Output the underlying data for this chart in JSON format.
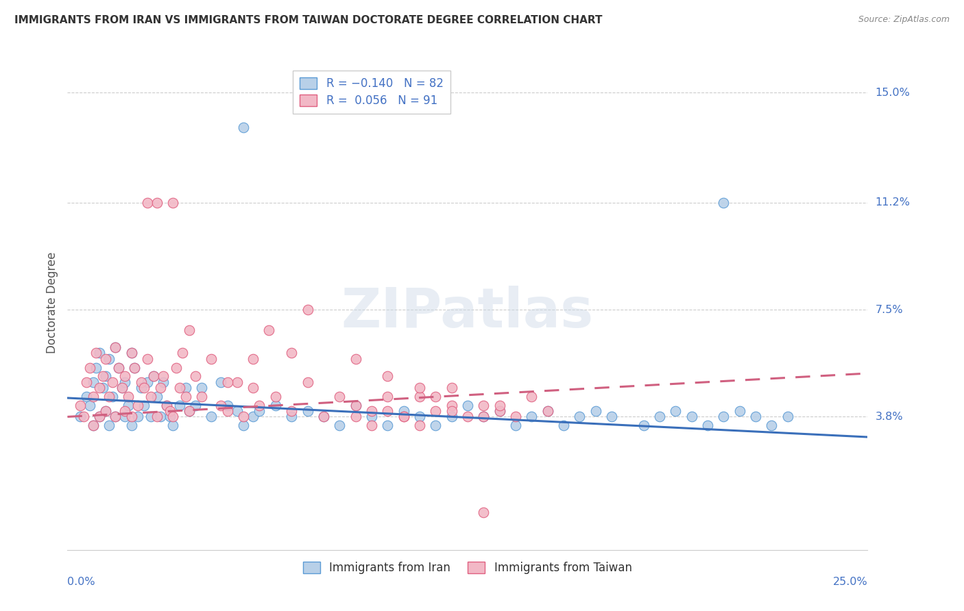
{
  "title": "IMMIGRANTS FROM IRAN VS IMMIGRANTS FROM TAIWAN DOCTORATE DEGREE CORRELATION CHART",
  "source": "Source: ZipAtlas.com",
  "ylabel": "Doctorate Degree",
  "xmin": 0.0,
  "xmax": 0.25,
  "ymin": -0.008,
  "ymax": 0.163,
  "iran_R": -0.14,
  "iran_N": 82,
  "taiwan_R": 0.056,
  "taiwan_N": 91,
  "color_iran_fill": "#b8d0e8",
  "color_iran_edge": "#5b9bd5",
  "color_taiwan_fill": "#f2b8c6",
  "color_taiwan_edge": "#e06080",
  "color_iran_line": "#3a6fba",
  "color_taiwan_line": "#d06080",
  "color_blue_text": "#4472c4",
  "iran_line_x0": 0.0,
  "iran_line_x1": 0.25,
  "iran_line_y0": 0.0445,
  "iran_line_y1": 0.031,
  "taiwan_line_x0": 0.0,
  "taiwan_line_x1": 0.25,
  "taiwan_line_y0": 0.038,
  "taiwan_line_y1": 0.053,
  "iran_x": [
    0.004,
    0.006,
    0.007,
    0.008,
    0.008,
    0.009,
    0.01,
    0.01,
    0.011,
    0.012,
    0.012,
    0.013,
    0.013,
    0.014,
    0.015,
    0.015,
    0.016,
    0.017,
    0.018,
    0.018,
    0.019,
    0.02,
    0.02,
    0.021,
    0.022,
    0.023,
    0.024,
    0.025,
    0.026,
    0.027,
    0.028,
    0.029,
    0.03,
    0.031,
    0.032,
    0.033,
    0.035,
    0.037,
    0.038,
    0.04,
    0.042,
    0.045,
    0.048,
    0.05,
    0.053,
    0.055,
    0.058,
    0.06,
    0.065,
    0.07,
    0.075,
    0.08,
    0.085,
    0.09,
    0.095,
    0.1,
    0.105,
    0.11,
    0.115,
    0.12,
    0.125,
    0.13,
    0.135,
    0.14,
    0.145,
    0.15,
    0.155,
    0.16,
    0.165,
    0.17,
    0.18,
    0.185,
    0.19,
    0.195,
    0.2,
    0.205,
    0.21,
    0.215,
    0.22,
    0.225,
    0.055,
    0.205
  ],
  "iran_y": [
    0.038,
    0.045,
    0.042,
    0.05,
    0.035,
    0.055,
    0.06,
    0.038,
    0.048,
    0.052,
    0.04,
    0.058,
    0.035,
    0.045,
    0.062,
    0.038,
    0.055,
    0.048,
    0.05,
    0.038,
    0.042,
    0.06,
    0.035,
    0.055,
    0.038,
    0.048,
    0.042,
    0.05,
    0.038,
    0.052,
    0.045,
    0.038,
    0.05,
    0.042,
    0.038,
    0.035,
    0.042,
    0.048,
    0.04,
    0.042,
    0.048,
    0.038,
    0.05,
    0.042,
    0.04,
    0.035,
    0.038,
    0.04,
    0.042,
    0.038,
    0.04,
    0.038,
    0.035,
    0.042,
    0.038,
    0.035,
    0.04,
    0.038,
    0.035,
    0.038,
    0.042,
    0.038,
    0.04,
    0.035,
    0.038,
    0.04,
    0.035,
    0.038,
    0.04,
    0.038,
    0.035,
    0.038,
    0.04,
    0.038,
    0.035,
    0.038,
    0.04,
    0.038,
    0.035,
    0.038,
    0.138,
    0.112
  ],
  "taiwan_x": [
    0.004,
    0.005,
    0.006,
    0.007,
    0.008,
    0.008,
    0.009,
    0.01,
    0.01,
    0.011,
    0.012,
    0.012,
    0.013,
    0.014,
    0.015,
    0.015,
    0.016,
    0.017,
    0.018,
    0.018,
    0.019,
    0.02,
    0.02,
    0.021,
    0.022,
    0.023,
    0.024,
    0.025,
    0.026,
    0.027,
    0.028,
    0.029,
    0.03,
    0.031,
    0.032,
    0.033,
    0.034,
    0.035,
    0.036,
    0.037,
    0.038,
    0.04,
    0.042,
    0.045,
    0.048,
    0.05,
    0.053,
    0.055,
    0.058,
    0.06,
    0.065,
    0.07,
    0.075,
    0.08,
    0.085,
    0.09,
    0.095,
    0.1,
    0.105,
    0.11,
    0.115,
    0.12,
    0.125,
    0.13,
    0.135,
    0.14,
    0.145,
    0.15,
    0.025,
    0.028,
    0.033,
    0.05,
    0.038,
    0.058,
    0.063,
    0.07,
    0.075,
    0.09,
    0.1,
    0.11,
    0.12,
    0.13,
    0.09,
    0.095,
    0.1,
    0.105,
    0.11,
    0.115,
    0.12,
    0.13,
    0.135
  ],
  "taiwan_y": [
    0.042,
    0.038,
    0.05,
    0.055,
    0.045,
    0.035,
    0.06,
    0.048,
    0.038,
    0.052,
    0.04,
    0.058,
    0.045,
    0.05,
    0.062,
    0.038,
    0.055,
    0.048,
    0.052,
    0.04,
    0.045,
    0.06,
    0.038,
    0.055,
    0.042,
    0.05,
    0.048,
    0.058,
    0.045,
    0.052,
    0.038,
    0.048,
    0.052,
    0.042,
    0.04,
    0.038,
    0.055,
    0.048,
    0.06,
    0.045,
    0.04,
    0.052,
    0.045,
    0.058,
    0.042,
    0.04,
    0.05,
    0.038,
    0.048,
    0.042,
    0.045,
    0.04,
    0.05,
    0.038,
    0.045,
    0.042,
    0.04,
    0.052,
    0.038,
    0.045,
    0.04,
    0.048,
    0.038,
    0.042,
    0.04,
    0.038,
    0.045,
    0.04,
    0.112,
    0.112,
    0.112,
    0.05,
    0.068,
    0.058,
    0.068,
    0.06,
    0.075,
    0.058,
    0.045,
    0.048,
    0.042,
    0.005,
    0.038,
    0.035,
    0.04,
    0.038,
    0.035,
    0.045,
    0.04,
    0.038,
    0.042
  ]
}
